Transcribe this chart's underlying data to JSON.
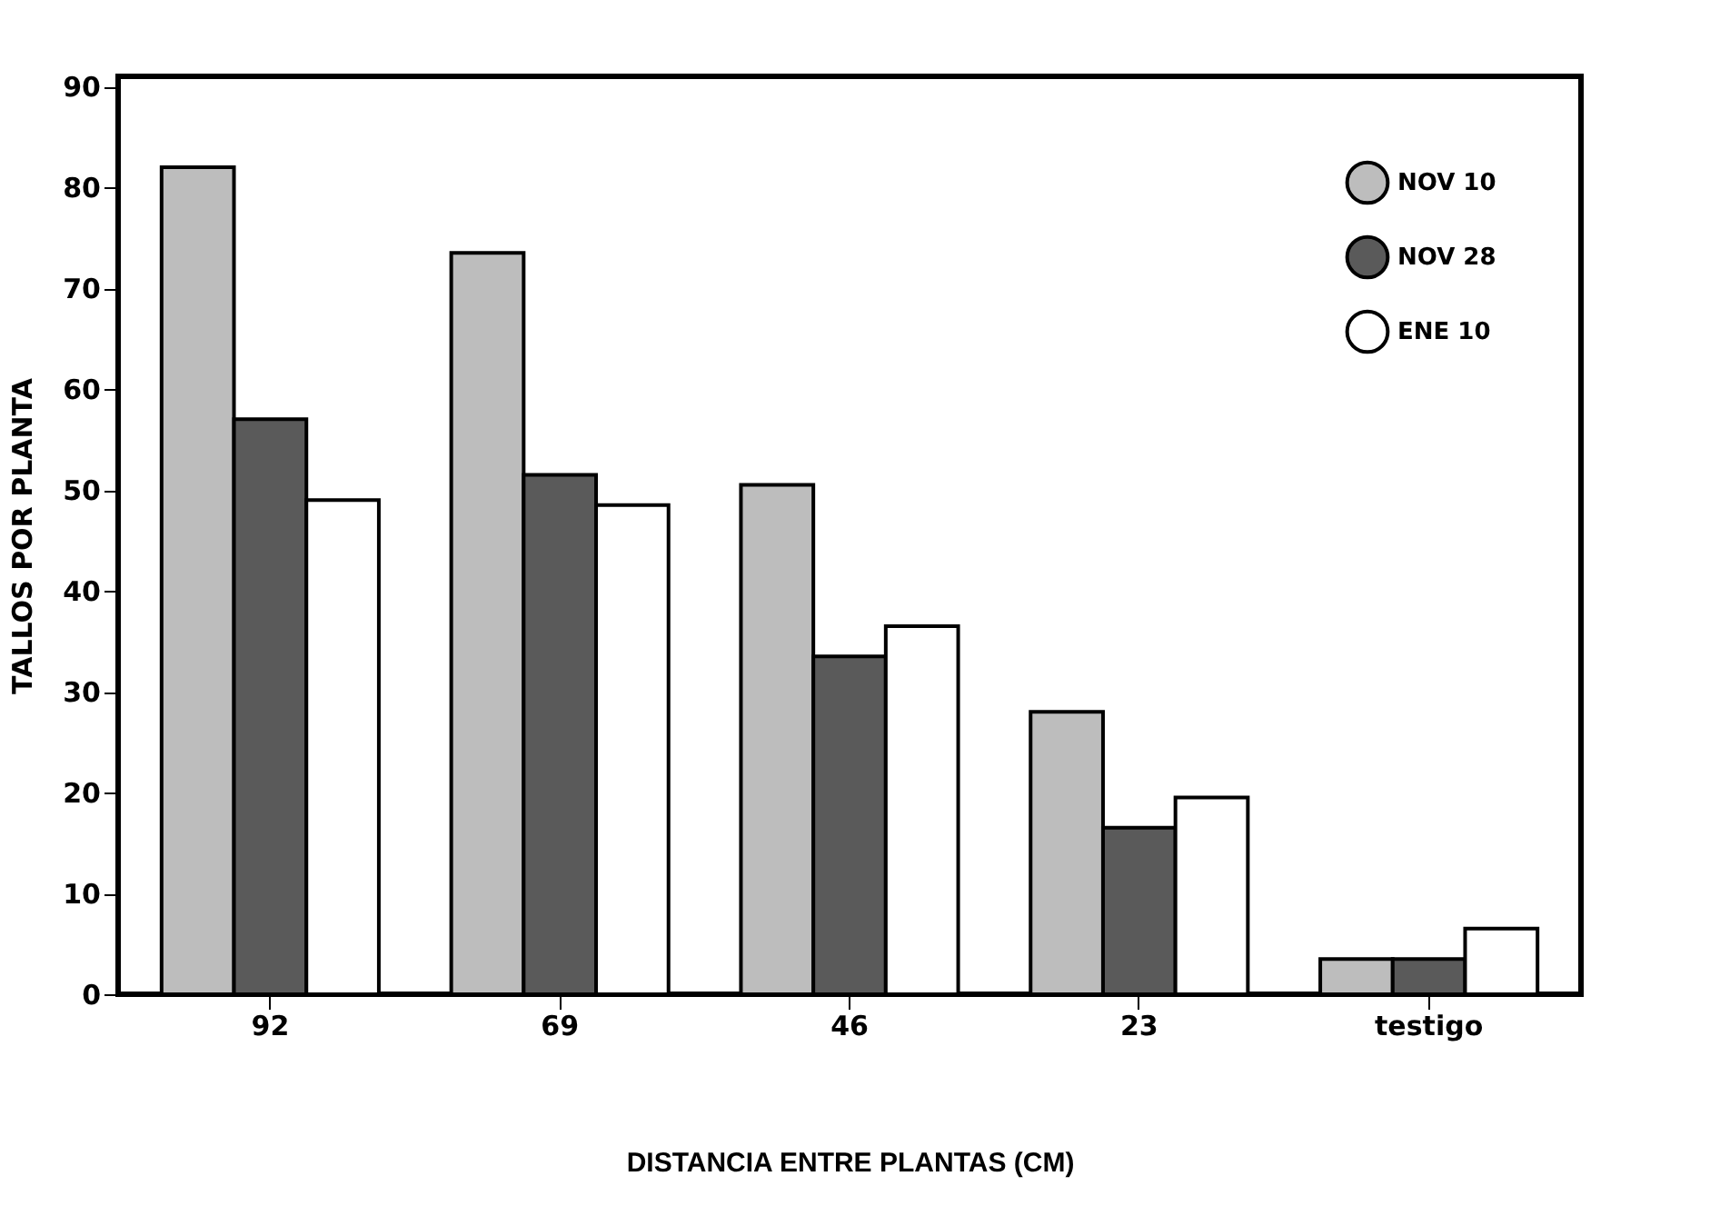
{
  "chart_data": {
    "type": "bar",
    "xlabel": "DISTANCIA ENTRE PLANTAS (CM)",
    "ylabel": "TALLOS POR PLANTA",
    "categories": [
      "92",
      "69",
      "46",
      "23",
      "testigo"
    ],
    "series": [
      {
        "name": "NOV 10",
        "color": "#bdbdbd",
        "values": [
          82,
          73.5,
          50.5,
          28,
          3.5
        ]
      },
      {
        "name": "NOV 28",
        "color": "#5a5a5a",
        "values": [
          57,
          51.5,
          33.5,
          16.5,
          3.5
        ]
      },
      {
        "name": "ENE 10",
        "color": "#ffffff",
        "values": [
          49,
          48.5,
          36.5,
          19.5,
          6.5
        ]
      }
    ],
    "ylim": [
      0,
      91
    ],
    "yticks": [
      0,
      10,
      20,
      30,
      40,
      50,
      60,
      70,
      80,
      90
    ],
    "grid": false,
    "legend": "top right"
  }
}
